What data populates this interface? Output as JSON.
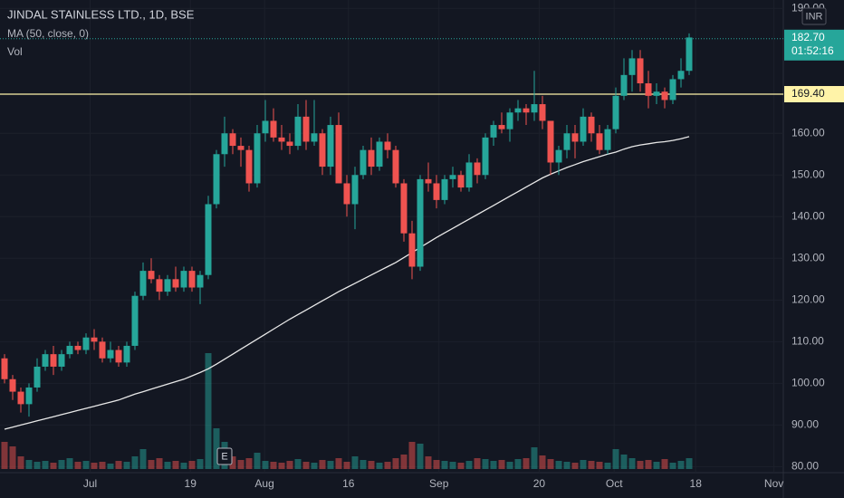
{
  "chart_data": {
    "type": "candlestick",
    "title": "JINDAL STAINLESS LTD., 1D, BSE",
    "indicator_label": "MA (50, close, 0)",
    "volume_label": "Vol",
    "currency": "INR",
    "last_price": {
      "value": 182.7,
      "label": "182.70"
    },
    "countdown": "01:52:16",
    "level_line": {
      "value": 169.4,
      "label": "169.40"
    },
    "earnings_marker": "E",
    "colors": {
      "up": "#26a69a",
      "down": "#ef5350",
      "ma": "#e8e8e8",
      "level": "#fff3a8"
    },
    "ylim": [
      79,
      192
    ],
    "yticks": [
      {
        "value": 80,
        "label": "80.00"
      },
      {
        "value": 90,
        "label": "90.00"
      },
      {
        "value": 100,
        "label": "100.00"
      },
      {
        "value": 110,
        "label": "110.00"
      },
      {
        "value": 120,
        "label": "120.00"
      },
      {
        "value": 130,
        "label": "130.00"
      },
      {
        "value": 140,
        "label": "140.00"
      },
      {
        "value": 150,
        "label": "150.00"
      },
      {
        "value": 160,
        "label": "160.00"
      },
      {
        "value": 190,
        "label": "190.00"
      }
    ],
    "xticks": [
      {
        "value": 10.5,
        "label": "Jul"
      },
      {
        "value": 22.8,
        "label": "19"
      },
      {
        "value": 31.9,
        "label": "Aug"
      },
      {
        "value": 42.2,
        "label": "16"
      },
      {
        "value": 53.3,
        "label": "Sep"
      },
      {
        "value": 65.6,
        "label": "20"
      },
      {
        "value": 74.8,
        "label": "Oct"
      },
      {
        "value": 84.8,
        "label": "18"
      },
      {
        "value": 94.4,
        "label": "Nov"
      }
    ],
    "candles": [
      [
        106,
        107,
        100,
        101
      ],
      [
        101,
        102,
        96,
        98
      ],
      [
        98,
        99,
        93,
        95
      ],
      [
        95,
        100,
        92,
        99
      ],
      [
        99,
        106,
        98,
        104
      ],
      [
        104,
        108,
        103,
        107
      ],
      [
        107,
        109,
        102,
        104
      ],
      [
        104,
        108,
        103,
        107
      ],
      [
        107,
        110,
        106,
        109
      ],
      [
        109,
        110,
        107,
        108
      ],
      [
        108,
        112,
        107,
        111
      ],
      [
        111,
        113,
        108,
        110
      ],
      [
        110,
        111,
        105,
        106
      ],
      [
        106,
        110,
        105,
        108
      ],
      [
        108,
        109,
        104,
        105
      ],
      [
        105,
        110,
        104,
        109
      ],
      [
        109,
        122,
        108,
        121
      ],
      [
        121,
        129,
        120,
        127
      ],
      [
        127,
        130,
        124,
        125
      ],
      [
        125,
        126,
        120,
        122
      ],
      [
        122,
        126,
        121,
        125
      ],
      [
        125,
        128,
        122,
        123
      ],
      [
        123,
        128,
        122,
        127
      ],
      [
        127,
        128,
        122,
        123
      ],
      [
        123,
        127,
        119,
        126
      ],
      [
        126,
        145,
        125,
        143
      ],
      [
        143,
        156,
        142,
        155
      ],
      [
        155,
        164,
        152,
        160
      ],
      [
        160,
        161,
        155,
        157
      ],
      [
        157,
        159,
        152,
        156
      ],
      [
        156,
        157,
        146,
        148
      ],
      [
        148,
        162,
        147,
        160
      ],
      [
        160,
        168,
        158,
        163
      ],
      [
        163,
        166,
        158,
        159
      ],
      [
        159,
        162,
        156,
        158
      ],
      [
        158,
        160,
        155,
        157
      ],
      [
        157,
        167,
        156,
        164
      ],
      [
        164,
        168,
        156,
        158
      ],
      [
        158,
        168,
        157,
        160
      ],
      [
        160,
        161,
        150,
        152
      ],
      [
        152,
        164,
        150,
        162
      ],
      [
        162,
        165,
        148,
        148
      ],
      [
        148,
        150,
        140,
        143
      ],
      [
        143,
        152,
        137,
        150
      ],
      [
        150,
        157,
        149,
        156
      ],
      [
        156,
        159,
        150,
        152
      ],
      [
        152,
        159,
        151,
        158
      ],
      [
        158,
        160,
        154,
        156
      ],
      [
        156,
        157,
        147,
        148
      ],
      [
        148,
        149,
        134,
        136
      ],
      [
        136,
        139,
        125,
        128
      ],
      [
        128,
        150,
        127,
        149
      ],
      [
        149,
        153,
        146,
        148
      ],
      [
        148,
        150,
        142,
        144
      ],
      [
        144,
        150,
        143,
        149
      ],
      [
        149,
        152,
        147,
        150
      ],
      [
        150,
        151,
        146,
        147
      ],
      [
        147,
        155,
        146,
        153
      ],
      [
        153,
        154,
        148,
        150
      ],
      [
        150,
        160,
        149,
        159
      ],
      [
        159,
        163,
        157,
        162
      ],
      [
        162,
        165,
        160,
        161
      ],
      [
        161,
        166,
        158,
        165
      ],
      [
        165,
        168,
        163,
        166
      ],
      [
        166,
        167,
        162,
        165
      ],
      [
        165,
        175,
        163,
        167
      ],
      [
        167,
        169,
        161,
        163
      ],
      [
        163,
        163,
        150,
        153
      ],
      [
        153,
        157,
        150,
        156
      ],
      [
        156,
        162,
        154,
        160
      ],
      [
        160,
        162,
        154,
        158
      ],
      [
        158,
        166,
        157,
        164
      ],
      [
        164,
        165,
        158,
        160
      ],
      [
        160,
        162,
        155,
        156
      ],
      [
        156,
        162,
        155,
        161
      ],
      [
        161,
        171,
        160,
        169
      ],
      [
        169,
        178,
        168,
        174
      ],
      [
        174,
        180,
        170,
        178
      ],
      [
        178,
        180,
        170,
        172
      ],
      [
        172,
        175,
        166,
        169
      ],
      [
        169,
        172,
        167,
        170
      ],
      [
        170,
        171,
        166,
        168
      ],
      [
        168,
        174,
        167,
        173
      ],
      [
        173,
        178,
        171,
        175
      ],
      [
        175,
        184,
        174,
        183
      ]
    ],
    "ma": [
      89,
      89.5,
      90,
      90.5,
      91,
      91.5,
      92,
      92.5,
      93,
      93.5,
      94,
      94.5,
      95,
      95.5,
      96,
      96.7,
      97.4,
      98,
      98.6,
      99.2,
      99.8,
      100.4,
      101,
      101.8,
      102.6,
      103.5,
      104.6,
      105.8,
      107,
      108.2,
      109.4,
      110.6,
      111.8,
      113,
      114.2,
      115.4,
      116.5,
      117.6,
      118.7,
      119.8,
      120.9,
      122,
      123,
      124,
      125,
      126,
      127,
      128,
      129,
      130.2,
      131.4,
      132.6,
      133.8,
      135,
      136.1,
      137.2,
      138.3,
      139.4,
      140.5,
      141.6,
      142.7,
      143.8,
      144.9,
      146,
      147.1,
      148.2,
      149.3,
      150.2,
      151,
      151.8,
      152.5,
      153.2,
      153.8,
      154.4,
      155,
      155.5,
      156.2,
      156.8,
      157.2,
      157.5,
      157.8,
      158,
      158.3,
      158.7,
      159.2
    ],
    "volume": [
      30,
      25,
      14,
      10,
      8,
      9,
      7,
      10,
      12,
      8,
      9,
      7,
      8,
      6,
      9,
      8,
      14,
      22,
      10,
      12,
      8,
      9,
      7,
      9,
      11,
      128,
      45,
      30,
      14,
      10,
      12,
      18,
      9,
      8,
      7,
      9,
      11,
      8,
      7,
      10,
      9,
      12,
      8,
      14,
      10,
      9,
      7,
      8,
      12,
      16,
      30,
      28,
      14,
      10,
      9,
      8,
      7,
      9,
      12,
      11,
      9,
      10,
      8,
      11,
      12,
      24,
      15,
      11,
      9,
      8,
      7,
      10,
      9,
      8,
      7,
      22,
      16,
      12,
      9,
      10,
      8,
      11,
      7,
      9,
      12
    ]
  }
}
